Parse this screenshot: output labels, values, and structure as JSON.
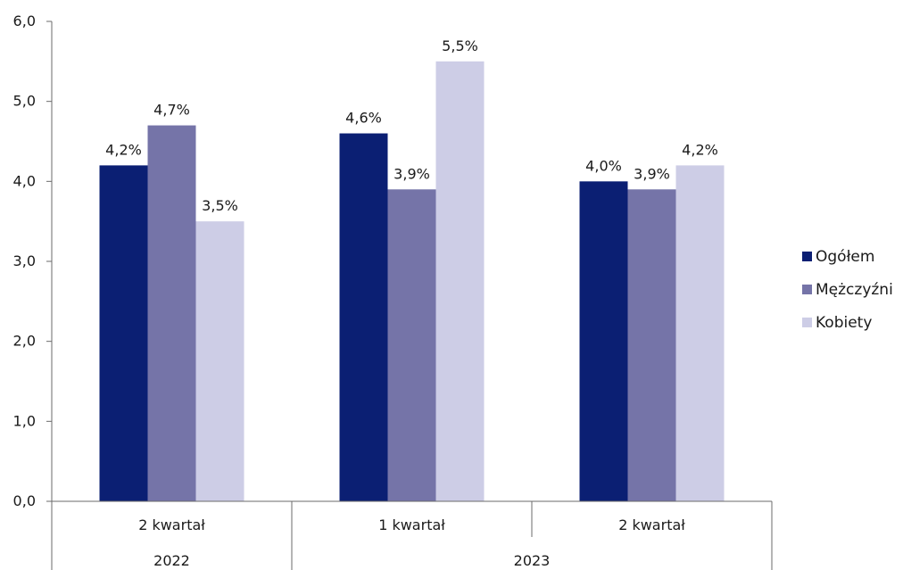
{
  "chart_data": {
    "type": "bar",
    "title": "",
    "xlabel": "",
    "ylabel": "",
    "ylim": [
      0,
      6
    ],
    "y_ticks": [
      "0,0",
      "1,0",
      "2,0",
      "3,0",
      "4,0",
      "5,0",
      "6,0"
    ],
    "grid": false,
    "legend_position": "right",
    "categories": [
      "2 kwartał",
      "1 kwartał",
      "2 kwartał"
    ],
    "groups": [
      {
        "label": "2022",
        "span": 1
      },
      {
        "label": "2023",
        "span": 2
      }
    ],
    "series": [
      {
        "name": "Ogółem",
        "color": "#0b1f73",
        "values": [
          4.2,
          4.6,
          4.0
        ],
        "labels": [
          "4,2%",
          "4,6%",
          "4,0%"
        ]
      },
      {
        "name": "Mężczyźni",
        "color": "#7574a8",
        "values": [
          4.7,
          3.9,
          3.9
        ],
        "labels": [
          "4,7%",
          "3,9%",
          "3,9%"
        ]
      },
      {
        "name": "Kobiety",
        "color": "#cdcde6",
        "values": [
          3.5,
          5.5,
          4.2
        ],
        "labels": [
          "3,5%",
          "5,5%",
          "4,2%"
        ]
      }
    ]
  }
}
